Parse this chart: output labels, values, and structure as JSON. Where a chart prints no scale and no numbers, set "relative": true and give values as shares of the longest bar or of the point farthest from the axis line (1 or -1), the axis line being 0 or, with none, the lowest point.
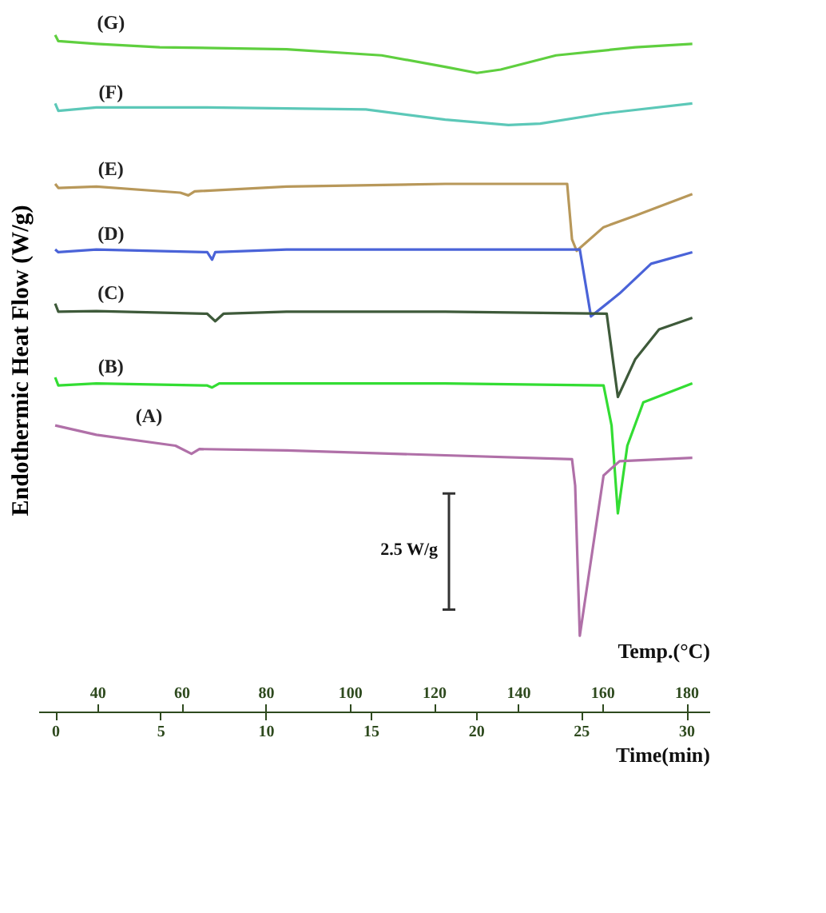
{
  "chart_data": {
    "type": "line",
    "relative": true,
    "ylabel": "Endothermic  Heat Flow (W/g)",
    "xlabel": "Time(min)",
    "x2label": "Temp.(°C)",
    "xlim": [
      -0.8,
      31.1
    ],
    "xticks": [
      0,
      5,
      10,
      15,
      20,
      25,
      30
    ],
    "x2lim": [
      26,
      185.5
    ],
    "x2ticks": [
      40,
      60,
      80,
      100,
      120,
      140,
      160,
      180
    ],
    "tick_labels": "x",
    "grid": false,
    "marker": "none",
    "line_style": "solid",
    "annotations": [
      "2.5 W/g"
    ],
    "series": [
      {
        "name": "(G)",
        "color": "#5fcf3f",
        "x": [
          0,
          0.15,
          1.96,
          4.97,
          11.0,
          15.52,
          18.54,
          20.05,
          21.18,
          23.81,
          27.58,
          30.29
        ],
        "values": [
          1.0,
          0.991,
          0.987,
          0.982,
          0.979,
          0.97,
          0.953,
          0.944,
          0.949,
          0.97,
          0.982,
          0.987
        ]
      },
      {
        "name": "(F)",
        "color": "#5cc8b8",
        "x": [
          0,
          0.15,
          1.96,
          7.23,
          14.77,
          18.54,
          21.55,
          23.06,
          26.07,
          30.29
        ],
        "values": [
          0.899,
          0.888,
          0.893,
          0.893,
          0.89,
          0.875,
          0.867,
          0.869,
          0.884,
          0.899
        ]
      },
      {
        "name": "(E)",
        "color": "#b8985a",
        "x": [
          0,
          0.15,
          1.96,
          5.95,
          6.33,
          6.63,
          11.0,
          18.54,
          24.34,
          24.57,
          24.79,
          26.07,
          27.58,
          30.29
        ],
        "values": [
          0.78,
          0.774,
          0.776,
          0.767,
          0.763,
          0.769,
          0.776,
          0.78,
          0.78,
          0.698,
          0.681,
          0.716,
          0.733,
          0.765
        ]
      },
      {
        "name": "(D)",
        "color": "#4a63d8",
        "x": [
          0,
          0.15,
          1.96,
          7.23,
          7.46,
          7.61,
          11.0,
          18.54,
          24.94,
          25.47,
          26.83,
          28.33,
          30.29
        ],
        "values": [
          0.683,
          0.679,
          0.683,
          0.679,
          0.668,
          0.679,
          0.683,
          0.683,
          0.683,
          0.584,
          0.618,
          0.662,
          0.679
        ]
      },
      {
        "name": "(C)",
        "color": "#3e5a3a",
        "x": [
          0,
          0.15,
          1.96,
          7.23,
          7.61,
          8.0,
          11.0,
          18.54,
          26.22,
          26.75,
          27.58,
          28.71,
          30.29
        ],
        "values": [
          0.603,
          0.591,
          0.592,
          0.588,
          0.577,
          0.588,
          0.591,
          0.591,
          0.588,
          0.465,
          0.521,
          0.565,
          0.582
        ]
      },
      {
        "name": "(B)",
        "color": "#33dd33",
        "x": [
          0,
          0.15,
          1.96,
          7.23,
          7.46,
          7.8,
          11.0,
          18.54,
          26.07,
          26.45,
          26.75,
          27.2,
          27.96,
          30.29
        ],
        "values": [
          0.494,
          0.482,
          0.485,
          0.482,
          0.479,
          0.485,
          0.485,
          0.485,
          0.482,
          0.423,
          0.293,
          0.393,
          0.457,
          0.485
        ]
      },
      {
        "name": "(A)",
        "color": "#b070a8",
        "x": [
          0,
          1.96,
          5.72,
          6.48,
          6.86,
          11.0,
          24.57,
          24.72,
          24.94,
          26.07,
          26.83,
          30.29
        ],
        "values": [
          0.423,
          0.409,
          0.393,
          0.381,
          0.388,
          0.386,
          0.373,
          0.334,
          0.112,
          0.349,
          0.37,
          0.375
        ]
      }
    ]
  }
}
